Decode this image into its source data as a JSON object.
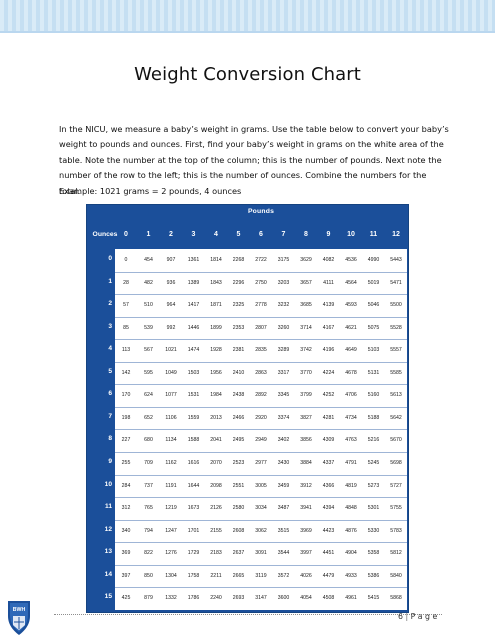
{
  "document": {
    "title": "Weight Conversion Chart",
    "intro": "In the NICU, we measure a baby’s weight in grams.  Use the table below to convert your baby’s weight to pounds and ounces. First, find your baby’s weight in grams on the white area of the table. Note the number at the top of the column; this is the number of pounds.  Next note the number of the row to the left; this is the number of ounces.  Combine the numbers for the total.",
    "example": "Example:    1021 grams = 2 pounds, 4 ounces",
    "page_number": "6",
    "page_separator": "|",
    "page_word": "P a g e",
    "logo_text": "BWH"
  },
  "table": {
    "pounds_label": "Pounds",
    "ounces_label": "Ounces",
    "pounds": [
      "0",
      "1",
      "2",
      "3",
      "4",
      "5",
      "6",
      "7",
      "8",
      "9",
      "10",
      "11",
      "12"
    ],
    "ounces": [
      "0",
      "1",
      "2",
      "3",
      "4",
      "5",
      "6",
      "7",
      "8",
      "9",
      "10",
      "11",
      "12",
      "13",
      "14",
      "15"
    ],
    "rows": [
      [
        "0",
        "454",
        "907",
        "1361",
        "1814",
        "2268",
        "2722",
        "3175",
        "3629",
        "4082",
        "4536",
        "4990",
        "5443"
      ],
      [
        "28",
        "482",
        "936",
        "1389",
        "1843",
        "2296",
        "2750",
        "3203",
        "3657",
        "4111",
        "4564",
        "5019",
        "5471"
      ],
      [
        "57",
        "510",
        "964",
        "1417",
        "1871",
        "2325",
        "2778",
        "3232",
        "3685",
        "4139",
        "4593",
        "5046",
        "5500"
      ],
      [
        "85",
        "539",
        "992",
        "1446",
        "1899",
        "2353",
        "2807",
        "3260",
        "3714",
        "4167",
        "4621",
        "5075",
        "5528"
      ],
      [
        "113",
        "567",
        "1021",
        "1474",
        "1928",
        "2381",
        "2835",
        "3289",
        "3742",
        "4196",
        "4649",
        "5103",
        "5557"
      ],
      [
        "142",
        "595",
        "1049",
        "1503",
        "1956",
        "2410",
        "2863",
        "3317",
        "3770",
        "4224",
        "4678",
        "5131",
        "5585"
      ],
      [
        "170",
        "624",
        "1077",
        "1531",
        "1984",
        "2438",
        "2892",
        "3345",
        "3799",
        "4252",
        "4706",
        "5160",
        "5613"
      ],
      [
        "198",
        "652",
        "1106",
        "1559",
        "2013",
        "2466",
        "2920",
        "3374",
        "3827",
        "4281",
        "4734",
        "5188",
        "5642"
      ],
      [
        "227",
        "680",
        "1134",
        "1588",
        "2041",
        "2495",
        "2949",
        "3402",
        "3856",
        "4309",
        "4763",
        "5216",
        "5670"
      ],
      [
        "255",
        "709",
        "1162",
        "1616",
        "2070",
        "2523",
        "2977",
        "3430",
        "3884",
        "4337",
        "4791",
        "5245",
        "5698"
      ],
      [
        "284",
        "737",
        "1191",
        "1644",
        "2098",
        "2551",
        "3005",
        "3459",
        "3912",
        "4366",
        "4819",
        "5273",
        "5727"
      ],
      [
        "312",
        "765",
        "1219",
        "1673",
        "2126",
        "2580",
        "3034",
        "3487",
        "3941",
        "4394",
        "4848",
        "5301",
        "5755"
      ],
      [
        "340",
        "794",
        "1247",
        "1701",
        "2155",
        "2608",
        "3062",
        "3515",
        "3969",
        "4423",
        "4876",
        "5330",
        "5783"
      ],
      [
        "369",
        "822",
        "1276",
        "1729",
        "2183",
        "2637",
        "3091",
        "3544",
        "3997",
        "4451",
        "4904",
        "5358",
        "5812"
      ],
      [
        "397",
        "850",
        "1304",
        "1758",
        "2211",
        "2665",
        "3119",
        "3572",
        "4026",
        "4479",
        "4933",
        "5386",
        "5840"
      ],
      [
        "425",
        "879",
        "1332",
        "1786",
        "2240",
        "2693",
        "3147",
        "3600",
        "4054",
        "4508",
        "4961",
        "5415",
        "5868"
      ]
    ]
  },
  "colors": {
    "table_header": "#1b4f9a",
    "table_body": "#ffffff",
    "top_band": "#d9ebf7",
    "logo": "#1b4f9a"
  }
}
